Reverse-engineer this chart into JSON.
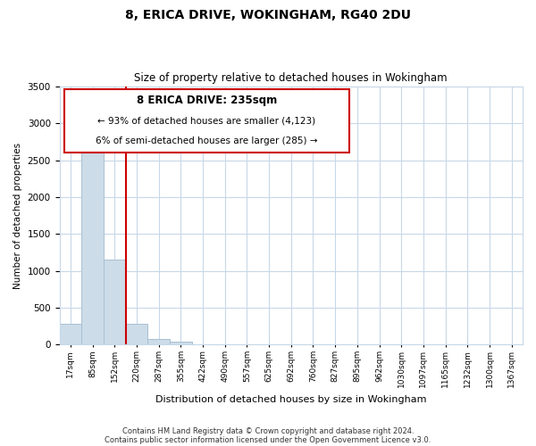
{
  "title": "8, ERICA DRIVE, WOKINGHAM, RG40 2DU",
  "subtitle": "Size of property relative to detached houses in Wokingham",
  "xlabel": "Distribution of detached houses by size in Wokingham",
  "ylabel": "Number of detached properties",
  "bar_labels": [
    "17sqm",
    "85sqm",
    "152sqm",
    "220sqm",
    "287sqm",
    "355sqm",
    "422sqm",
    "490sqm",
    "557sqm",
    "625sqm",
    "692sqm",
    "760sqm",
    "827sqm",
    "895sqm",
    "962sqm",
    "1030sqm",
    "1097sqm",
    "1165sqm",
    "1232sqm",
    "1300sqm",
    "1367sqm"
  ],
  "bar_values": [
    280,
    2640,
    1150,
    285,
    80,
    40,
    0,
    0,
    0,
    0,
    0,
    0,
    0,
    0,
    0,
    0,
    0,
    0,
    0,
    0,
    0
  ],
  "bar_color": "#ccdce8",
  "bar_edge_color": "#a8c0d4",
  "vline_color": "#cc0000",
  "ylim": [
    0,
    3500
  ],
  "yticks": [
    0,
    500,
    1000,
    1500,
    2000,
    2500,
    3000,
    3500
  ],
  "annotation_box_text_line1": "8 ERICA DRIVE: 235sqm",
  "annotation_box_text_line2": "← 93% of detached houses are smaller (4,123)",
  "annotation_box_text_line3": "6% of semi-detached houses are larger (285) →",
  "annotation_box_color": "#ffffff",
  "annotation_box_edge_color": "#cc0000",
  "footer_line1": "Contains HM Land Registry data © Crown copyright and database right 2024.",
  "footer_line2": "Contains public sector information licensed under the Open Government Licence v3.0.",
  "background_color": "#ffffff",
  "grid_color": "#c8d8e8"
}
